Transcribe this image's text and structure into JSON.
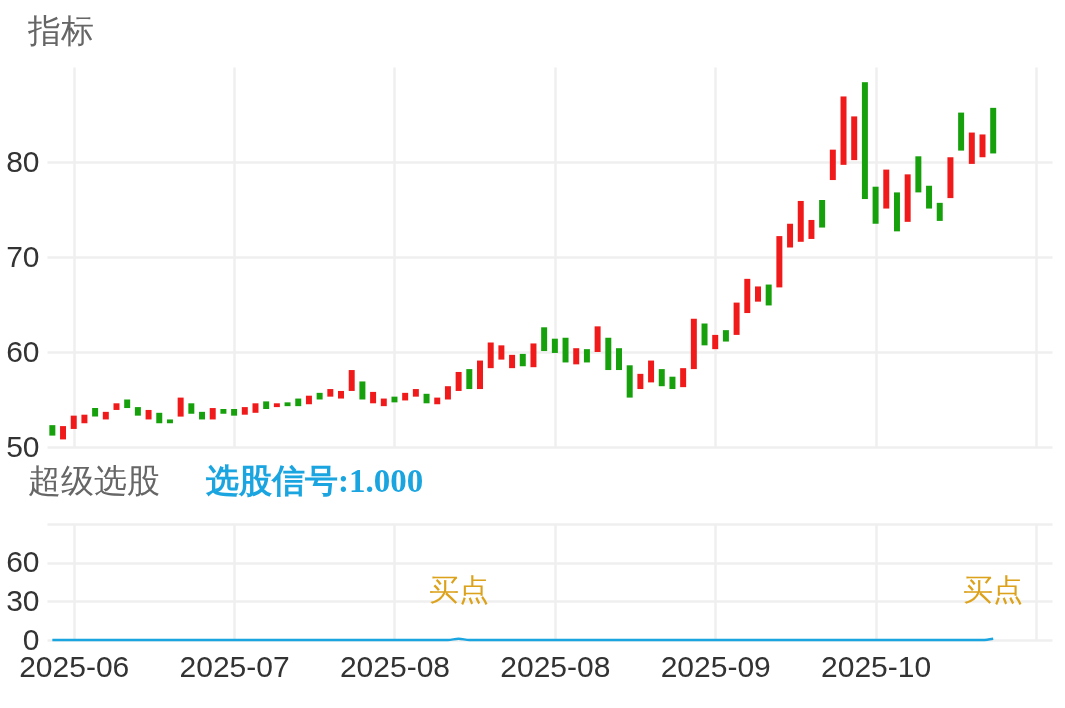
{
  "chart_data": [
    {
      "type": "candlestick",
      "title": "指标",
      "categories": [
        null,
        null,
        "2025-06",
        null,
        null,
        null,
        null,
        null,
        null,
        null,
        null,
        null,
        null,
        null,
        null,
        null,
        null,
        "2025-07",
        null,
        null,
        null,
        null,
        null,
        null,
        null,
        null,
        null,
        null,
        null,
        null,
        null,
        null,
        "2025-08",
        null,
        null,
        null,
        null,
        null,
        null,
        null,
        null,
        null,
        null,
        null,
        null,
        null,
        null,
        "2025-08",
        null,
        null,
        null,
        null,
        null,
        null,
        null,
        null,
        null,
        null,
        null,
        null,
        null,
        null,
        "2025-09",
        null,
        null,
        null,
        null,
        null,
        null,
        null,
        null,
        null,
        null,
        null,
        null,
        null,
        null,
        "2025-10",
        null,
        null,
        null,
        null,
        null,
        null,
        null,
        null,
        null,
        null,
        null,
        null,
        null,
        null,
        null,
        null
      ],
      "ohlc": [
        [
          52.3,
          52.3,
          51.2,
          51.2
        ],
        [
          50.8,
          52.2,
          50.8,
          52.2
        ],
        [
          51.9,
          53.3,
          51.9,
          53.3
        ],
        [
          52.5,
          53.4,
          52.5,
          53.4
        ],
        [
          54.1,
          54.1,
          53.2,
          53.2
        ],
        [
          52.9,
          53.7,
          52.9,
          53.7
        ],
        [
          53.9,
          54.6,
          53.9,
          54.6
        ],
        [
          55.0,
          55.0,
          54.1,
          54.1
        ],
        [
          54.2,
          54.2,
          53.3,
          53.3
        ],
        [
          52.9,
          53.9,
          52.9,
          53.9
        ],
        [
          53.6,
          53.6,
          52.5,
          52.5
        ],
        [
          52.9,
          52.9,
          52.5,
          52.5
        ],
        [
          53.2,
          55.2,
          53.2,
          55.2
        ],
        [
          54.6,
          54.6,
          53.5,
          53.5
        ],
        [
          53.7,
          53.7,
          52.9,
          52.9
        ],
        [
          52.9,
          54.1,
          52.9,
          54.1
        ],
        [
          54.0,
          54.0,
          53.5,
          53.5
        ],
        [
          54.0,
          54.0,
          53.3,
          53.3
        ],
        [
          53.4,
          54.2,
          53.4,
          54.2
        ],
        [
          53.6,
          54.6,
          53.6,
          54.6
        ],
        [
          54.8,
          54.8,
          54.0,
          54.0
        ],
        [
          54.2,
          54.6,
          54.2,
          54.6
        ],
        [
          54.7,
          54.7,
          54.3,
          54.3
        ],
        [
          55.1,
          55.1,
          54.3,
          54.3
        ],
        [
          54.5,
          55.4,
          54.5,
          55.4
        ],
        [
          55.7,
          55.7,
          55.0,
          55.0
        ],
        [
          55.3,
          56.1,
          55.3,
          56.1
        ],
        [
          55.1,
          55.9,
          55.1,
          55.9
        ],
        [
          55.9,
          58.1,
          55.9,
          58.1
        ],
        [
          56.9,
          56.9,
          55.0,
          55.0
        ],
        [
          54.6,
          55.8,
          54.6,
          55.8
        ],
        [
          54.3,
          55.1,
          54.3,
          55.1
        ],
        [
          55.3,
          55.3,
          54.7,
          54.7
        ],
        [
          54.9,
          55.7,
          54.9,
          55.7
        ],
        [
          55.3,
          56.1,
          55.3,
          56.1
        ],
        [
          55.6,
          55.6,
          54.6,
          54.6
        ],
        [
          54.5,
          55.2,
          54.5,
          55.2
        ],
        [
          55.0,
          56.4,
          55.0,
          56.4
        ],
        [
          55.9,
          57.9,
          55.9,
          57.9
        ],
        [
          58.2,
          58.2,
          56.1,
          56.1
        ],
        [
          56.1,
          59.1,
          56.1,
          59.1
        ],
        [
          58.3,
          61.0,
          58.3,
          61.0
        ],
        [
          59.2,
          60.7,
          59.2,
          60.7
        ],
        [
          58.3,
          59.7,
          58.3,
          59.7
        ],
        [
          59.8,
          59.8,
          58.5,
          58.5
        ],
        [
          58.4,
          60.9,
          58.4,
          60.9
        ],
        [
          62.6,
          62.6,
          60.1,
          60.1
        ],
        [
          61.4,
          61.4,
          59.9,
          59.9
        ],
        [
          61.5,
          61.5,
          58.9,
          58.9
        ],
        [
          58.7,
          60.4,
          58.7,
          60.4
        ],
        [
          60.3,
          60.3,
          58.9,
          58.9
        ],
        [
          60.0,
          62.7,
          60.0,
          62.7
        ],
        [
          61.5,
          61.5,
          58.1,
          58.1
        ],
        [
          60.4,
          60.4,
          58.1,
          58.1
        ],
        [
          58.6,
          58.6,
          55.2,
          55.2
        ],
        [
          56.1,
          57.7,
          56.1,
          57.7
        ],
        [
          56.8,
          59.1,
          56.8,
          59.1
        ],
        [
          58.2,
          58.2,
          56.4,
          56.4
        ],
        [
          57.4,
          57.4,
          56.1,
          56.1
        ],
        [
          56.3,
          58.3,
          56.3,
          58.3
        ],
        [
          58.2,
          63.5,
          58.2,
          63.5
        ],
        [
          63.0,
          63.0,
          60.7,
          60.7
        ],
        [
          60.3,
          61.8,
          60.3,
          61.8
        ],
        [
          62.3,
          62.3,
          61.1,
          61.1
        ],
        [
          61.8,
          65.2,
          61.8,
          65.2
        ],
        [
          64.1,
          67.7,
          64.1,
          67.7
        ],
        [
          65.3,
          66.9,
          65.3,
          66.9
        ],
        [
          67.1,
          67.1,
          64.9,
          64.9
        ],
        [
          66.8,
          72.2,
          66.8,
          72.2
        ],
        [
          71.0,
          73.5,
          71.0,
          73.5
        ],
        [
          71.6,
          75.9,
          71.6,
          75.9
        ],
        [
          71.9,
          73.9,
          71.9,
          73.9
        ],
        [
          76.0,
          76.0,
          73.1,
          73.1
        ],
        [
          78.1,
          81.3,
          78.1,
          81.3
        ],
        [
          79.7,
          86.9,
          79.7,
          86.9
        ],
        [
          80.2,
          84.8,
          80.2,
          84.8
        ],
        [
          88.4,
          88.4,
          76.1,
          76.1
        ],
        [
          77.4,
          77.4,
          73.5,
          73.5
        ],
        [
          75.1,
          79.2,
          75.1,
          79.2
        ],
        [
          76.8,
          76.8,
          72.7,
          72.7
        ],
        [
          73.7,
          78.7,
          73.7,
          78.7
        ],
        [
          80.6,
          80.6,
          76.8,
          76.8
        ],
        [
          77.5,
          77.5,
          75.1,
          75.1
        ],
        [
          75.7,
          75.7,
          73.8,
          73.8
        ],
        [
          76.2,
          80.5,
          76.2,
          80.5
        ],
        [
          85.2,
          85.2,
          81.2,
          81.2
        ],
        [
          79.8,
          83.1,
          79.8,
          83.1
        ],
        [
          80.5,
          82.9,
          80.5,
          82.9
        ],
        [
          85.7,
          85.7,
          80.9,
          80.9
        ],
        null,
        null,
        null,
        null,
        null
      ],
      "colors": [
        "#16a00c",
        "#f01a1a",
        "#f01a1a",
        "#f01a1a",
        "#16a00c",
        "#f01a1a",
        "#f01a1a",
        "#16a00c",
        "#16a00c",
        "#f01a1a",
        "#16a00c",
        "#16a00c",
        "#f01a1a",
        "#16a00c",
        "#16a00c",
        "#f01a1a",
        "#16a00c",
        "#16a00c",
        "#f01a1a",
        "#f01a1a",
        "#16a00c",
        "#f01a1a",
        "#16a00c",
        "#16a00c",
        "#f01a1a",
        "#16a00c",
        "#f01a1a",
        "#f01a1a",
        "#f01a1a",
        "#16a00c",
        "#f01a1a",
        "#f01a1a",
        "#16a00c",
        "#f01a1a",
        "#f01a1a",
        "#16a00c",
        "#f01a1a",
        "#f01a1a",
        "#f01a1a",
        "#16a00c",
        "#f01a1a",
        "#f01a1a",
        "#f01a1a",
        "#f01a1a",
        "#16a00c",
        "#f01a1a",
        "#16a00c",
        "#16a00c",
        "#16a00c",
        "#f01a1a",
        "#16a00c",
        "#f01a1a",
        "#16a00c",
        "#16a00c",
        "#16a00c",
        "#f01a1a",
        "#f01a1a",
        "#16a00c",
        "#16a00c",
        "#f01a1a",
        "#f01a1a",
        "#16a00c",
        "#f01a1a",
        "#16a00c",
        "#f01a1a",
        "#f01a1a",
        "#f01a1a",
        "#16a00c",
        "#f01a1a",
        "#f01a1a",
        "#f01a1a",
        "#f01a1a",
        "#16a00c",
        "#f01a1a",
        "#f01a1a",
        "#f01a1a",
        "#16a00c",
        "#16a00c",
        "#f01a1a",
        "#16a00c",
        "#f01a1a",
        "#16a00c",
        "#16a00c",
        "#16a00c",
        "#f01a1a",
        "#16a00c",
        "#f01a1a",
        "#f01a1a",
        "#16a00c",
        null,
        null,
        null,
        null,
        null
      ],
      "ylim": [
        50,
        90
      ],
      "yticks": [
        50,
        60,
        70,
        80
      ],
      "grid": true,
      "tick_labels": "y"
    },
    {
      "type": "line",
      "title": "超级选股",
      "categories": [
        null,
        null,
        "2025-06",
        null,
        null,
        null,
        null,
        null,
        null,
        null,
        null,
        null,
        null,
        null,
        null,
        null,
        null,
        "2025-07",
        null,
        null,
        null,
        null,
        null,
        null,
        null,
        null,
        null,
        null,
        null,
        null,
        null,
        null,
        "2025-08",
        null,
        null,
        null,
        null,
        null,
        null,
        null,
        null,
        null,
        null,
        null,
        null,
        null,
        null,
        "2025-08",
        null,
        null,
        null,
        null,
        null,
        null,
        null,
        null,
        null,
        null,
        null,
        null,
        null,
        null,
        "2025-09",
        null,
        null,
        null,
        null,
        null,
        null,
        null,
        null,
        null,
        null,
        null,
        null,
        null,
        null,
        "2025-10",
        null,
        null,
        null,
        null,
        null,
        null,
        null,
        null,
        null,
        null,
        null,
        null,
        null,
        null,
        null,
        null
      ],
      "series": [
        {
          "name": "选股信号:1.000",
          "color": "#1aa5e0",
          "values": [
            0,
            0,
            0,
            0,
            0,
            0,
            0,
            0,
            0,
            0,
            0,
            0,
            0,
            0,
            0,
            0,
            0,
            0,
            0,
            0,
            0,
            0,
            0,
            0,
            0,
            0,
            0,
            0,
            0,
            0,
            0,
            0,
            0,
            0,
            0,
            0,
            0,
            0,
            1,
            0,
            0,
            0,
            0,
            0,
            0,
            0,
            0,
            0,
            0,
            0,
            0,
            0,
            0,
            0,
            0,
            0,
            0,
            0,
            0,
            0,
            0,
            0,
            0,
            0,
            0,
            0,
            0,
            0,
            0,
            0,
            0,
            0,
            0,
            0,
            0,
            0,
            0,
            0,
            0,
            0,
            0,
            0,
            0,
            0,
            0,
            0,
            0,
            0,
            1,
            null,
            null,
            null,
            null,
            null
          ],
          "value_labels": [
            null,
            null,
            null,
            null,
            null,
            null,
            null,
            null,
            null,
            null,
            null,
            null,
            null,
            null,
            null,
            null,
            null,
            null,
            null,
            null,
            null,
            null,
            null,
            null,
            null,
            null,
            null,
            null,
            null,
            null,
            null,
            null,
            null,
            null,
            null,
            null,
            null,
            null,
            "买点",
            null,
            null,
            null,
            null,
            null,
            null,
            null,
            null,
            null,
            null,
            null,
            null,
            null,
            null,
            null,
            null,
            null,
            null,
            null,
            null,
            null,
            null,
            null,
            null,
            null,
            null,
            null,
            null,
            null,
            null,
            null,
            null,
            null,
            null,
            null,
            null,
            null,
            null,
            null,
            null,
            null,
            null,
            null,
            null,
            null,
            null,
            null,
            null,
            null,
            "买点",
            null,
            null,
            null,
            null,
            null
          ]
        }
      ],
      "ylim": [
        0,
        90
      ],
      "yticks": [
        0,
        30,
        60,
        {
          "value": 90,
          "label": null
        }
      ],
      "grid": true
    }
  ]
}
